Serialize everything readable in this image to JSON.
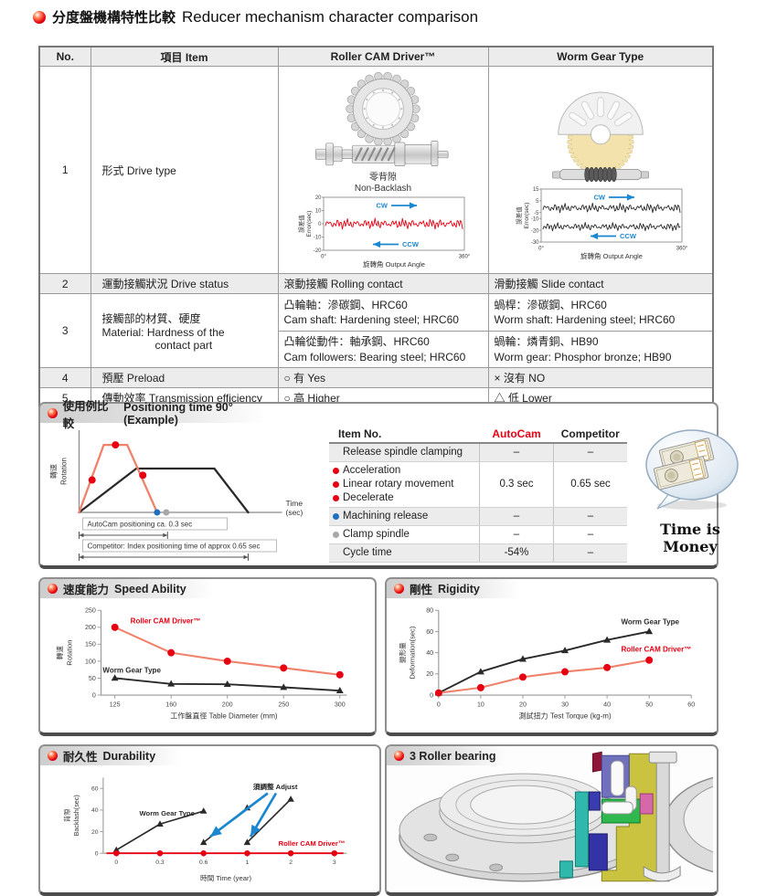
{
  "page": {
    "title_zh": "分度盤機構特性比較",
    "title_en": "Reducer mechanism character comparison"
  },
  "colors": {
    "accent_red": "#e60012",
    "salmon": "#f0826b",
    "blue": "#1b87cf",
    "dot_blue": "#1f6fbf",
    "dot_gray": "#a8a8a8",
    "tan_gear": "#f3e2ab",
    "shaded_row": "#ececec"
  },
  "comparison_table": {
    "headers": {
      "no": "No.",
      "item": "項目 Item",
      "roller": "Roller CAM Driver™",
      "worm": "Worm Gear Type"
    },
    "rows": {
      "drive_type": {
        "no": "1",
        "item": "形式 Drive type",
        "roller_caption_zh": "零背隙",
        "roller_caption_en": "Non-Backlash"
      },
      "drive_status": {
        "no": "2",
        "item": "運動接觸狀況 Drive status",
        "roller": "滾動接觸 Rolling contact",
        "worm": "滑動接觸 Slide contact"
      },
      "material": {
        "no": "3",
        "item_zh": "接觸部的材質、硬度",
        "item_en1": "Material: Hardness of the",
        "item_en2": "contact part",
        "roller_a_zh": "凸輪軸：滲碳鋼、HRC60",
        "roller_a_en": "Cam shaft: Hardening steel; HRC60",
        "roller_b_zh": "凸輪從動件：軸承鋼、HRC60",
        "roller_b_en": "Cam followers: Bearing steel; HRC60",
        "worm_a_zh": "蝸桿：滲碳鋼、HRC60",
        "worm_a_en": "Worm shaft: Hardening steel; HRC60",
        "worm_b_zh": "蝸輪：燐青銅、HB90",
        "worm_b_en": "Worm gear: Phosphor bronze; HB90"
      },
      "preload": {
        "no": "4",
        "item": "預壓 Preload",
        "roller": "○ 有 Yes",
        "worm": "× 沒有 NO"
      },
      "efficiency": {
        "no": "5",
        "item": "傳動效率 Transmission efficiency",
        "roller": "○ 高  Higher",
        "worm": "△ 低  Lower"
      }
    }
  },
  "sections": {
    "positioning": {
      "zh": "使用例比較",
      "en": "Positioning time 90° (Example)"
    },
    "speed": {
      "zh": "速度能力",
      "en": "Speed Ability"
    },
    "rigidity": {
      "zh": "剛性",
      "en": "Rigidity"
    },
    "durability": {
      "zh": "耐久性",
      "en": "Durability"
    },
    "bearing": {
      "en": "3 Roller bearing"
    }
  },
  "positioning": {
    "table": {
      "headers": [
        "Item No.",
        "AutoCam",
        "Competitor"
      ],
      "rows": [
        {
          "lines": [
            {
              "bullet": null,
              "text": "Release spindle clamping"
            }
          ],
          "autocam": "–",
          "competitor": "–"
        },
        {
          "lines": [
            {
              "bullet": "red",
              "text": "Acceleration"
            },
            {
              "bullet": "red",
              "text": "Linear rotary movement"
            },
            {
              "bullet": "red",
              "text": "Decelerate"
            }
          ],
          "autocam": "0.3 sec",
          "competitor": "0.65 sec"
        },
        {
          "lines": [
            {
              "bullet": "blue",
              "text": "Machining release"
            }
          ],
          "autocam": "–",
          "competitor": "–"
        },
        {
          "lines": [
            {
              "bullet": "gray",
              "text": "Clamp spindle"
            }
          ],
          "autocam": "–",
          "competitor": "–"
        },
        {
          "lines": [
            {
              "bullet": null,
              "text": "Cycle time"
            }
          ],
          "autocam": "-54%",
          "competitor": "–"
        }
      ]
    },
    "time_is_money": "Time is Money"
  },
  "chart_data": [
    {
      "id": "cam_error",
      "type": "line",
      "ylabel": "誤差值 Error(sec)",
      "xlabel": "旋轉角 Output Angle",
      "ylim": [
        -20,
        20
      ],
      "yticks": [
        20,
        10,
        0,
        -10,
        -20
      ],
      "xticklabels": [
        "0°",
        "360°"
      ],
      "cw_label": "CW",
      "ccw_label": "CCW",
      "series": [
        {
          "name": "error",
          "color": "#e60012",
          "center": 0,
          "amplitude": 4
        }
      ]
    },
    {
      "id": "worm_error",
      "type": "line",
      "ylabel": "誤差值 Error(sec)",
      "xlabel": "旋轉角 Output Angle",
      "ylim": [
        -30,
        15
      ],
      "yticks": [
        15,
        5,
        -5,
        -10,
        -20,
        -30
      ],
      "xticklabels": [
        "0°",
        "360°"
      ],
      "cw_label": "CW",
      "ccw_label": "CCW",
      "series": [
        {
          "name": "CW error",
          "color": "#2a2a2a",
          "center": -1,
          "amplitude": 4
        },
        {
          "name": "CCW error",
          "color": "#2a2a2a",
          "center": -17,
          "amplitude": 3.5
        }
      ]
    },
    {
      "id": "positioning_time",
      "type": "line",
      "ylabel": "轉速 Rotation Speed(rpm)",
      "xlabel": "Time (sec)",
      "xlim": [
        0,
        0.78
      ],
      "ylim": [
        0,
        115
      ],
      "series": [
        {
          "name": "AutoCam",
          "color": "#f0826b",
          "points": [
            [
              0,
              0
            ],
            [
              0.095,
              100
            ],
            [
              0.185,
              100
            ],
            [
              0.3,
              0
            ]
          ],
          "dots": {
            "color": "#e60012",
            "points": [
              [
                0.05,
                48
              ],
              [
                0.14,
                100
              ],
              [
                0.245,
                55
              ]
            ]
          }
        },
        {
          "name": "Competitor",
          "color": "#2a2a2a",
          "points": [
            [
              0,
              0
            ],
            [
              0.22,
              65
            ],
            [
              0.52,
              65
            ],
            [
              0.65,
              0
            ]
          ]
        }
      ],
      "end_markers": [
        {
          "color": "#1f6fbf",
          "x": 0.3
        },
        {
          "color": "#a8a8a8",
          "x": 0.335
        }
      ],
      "annotations": [
        {
          "text": "AutoCam positioning ca. 0.3 sec",
          "span": [
            0,
            0.34
          ]
        },
        {
          "text": "Competitor: Index positioning time of approx 0.65 sec",
          "span": [
            0,
            0.65
          ]
        }
      ]
    },
    {
      "id": "speed_ability",
      "type": "line",
      "xlabel": "工作盤直徑 Table Diameter (mm)",
      "ylabel": "轉速 Rotation Speed(rpm)",
      "categories": [
        125,
        160,
        200,
        250,
        300
      ],
      "ylim": [
        0,
        250
      ],
      "yticks": [
        0,
        50,
        100,
        150,
        200,
        250
      ],
      "series": [
        {
          "name": "Roller CAM Driver™",
          "color": "#e60012",
          "line_color": "#f0826b",
          "marker": "circle",
          "values": [
            200,
            125,
            100,
            80,
            60
          ]
        },
        {
          "name": "Worm Gear Type",
          "color": "#2a2a2a",
          "line_color": "#2a2a2a",
          "marker": "triangle",
          "values": [
            50,
            33,
            32,
            23,
            13
          ]
        }
      ]
    },
    {
      "id": "rigidity",
      "type": "line",
      "xlabel": "測試扭力 Test Torque (kg-m)",
      "ylabel": "變形量 Deformation(sec)",
      "xticks": [
        0,
        10,
        20,
        30,
        40,
        50,
        60
      ],
      "xlim": [
        0,
        60
      ],
      "ylim": [
        0,
        80
      ],
      "yticks": [
        0,
        20,
        40,
        60,
        80
      ],
      "series": [
        {
          "name": "Worm Gear Type",
          "color": "#2a2a2a",
          "line_color": "#2a2a2a",
          "marker": "triangle",
          "x": [
            0,
            10,
            20,
            30,
            40,
            50
          ],
          "values": [
            2,
            22,
            34,
            42,
            52,
            60
          ]
        },
        {
          "name": "Roller CAM Driver™",
          "color": "#e60012",
          "line_color": "#f0826b",
          "marker": "circle",
          "x": [
            0,
            10,
            20,
            30,
            40,
            50
          ],
          "values": [
            2,
            7,
            17,
            22,
            26,
            33
          ]
        }
      ]
    },
    {
      "id": "durability",
      "type": "line",
      "xlabel": "時間 Time (year)",
      "ylabel": "背隙 Backlash(sec)",
      "categories": [
        "0",
        "0.3",
        "0.6",
        "1",
        "2",
        "3"
      ],
      "ylim": [
        0,
        70
      ],
      "yticks": [
        0,
        20,
        40,
        60
      ],
      "adjust_label": "須調整 Adjust",
      "series": [
        {
          "name": "Worm Gear Type",
          "color": "#2a2a2a",
          "marker": "triangle",
          "segments": [
            [
              [
                0,
                3
              ],
              [
                1,
                27
              ],
              [
                2,
                39
              ]
            ],
            [
              [
                2,
                10
              ],
              [
                3,
                42
              ]
            ],
            [
              [
                3,
                10
              ],
              [
                4,
                50
              ]
            ]
          ]
        },
        {
          "name": "Roller CAM Driver™",
          "color": "#e60012",
          "marker": "circle",
          "flat_value": 0,
          "dot_indices": [
            0,
            1,
            2,
            3,
            4,
            5
          ]
        }
      ]
    }
  ]
}
